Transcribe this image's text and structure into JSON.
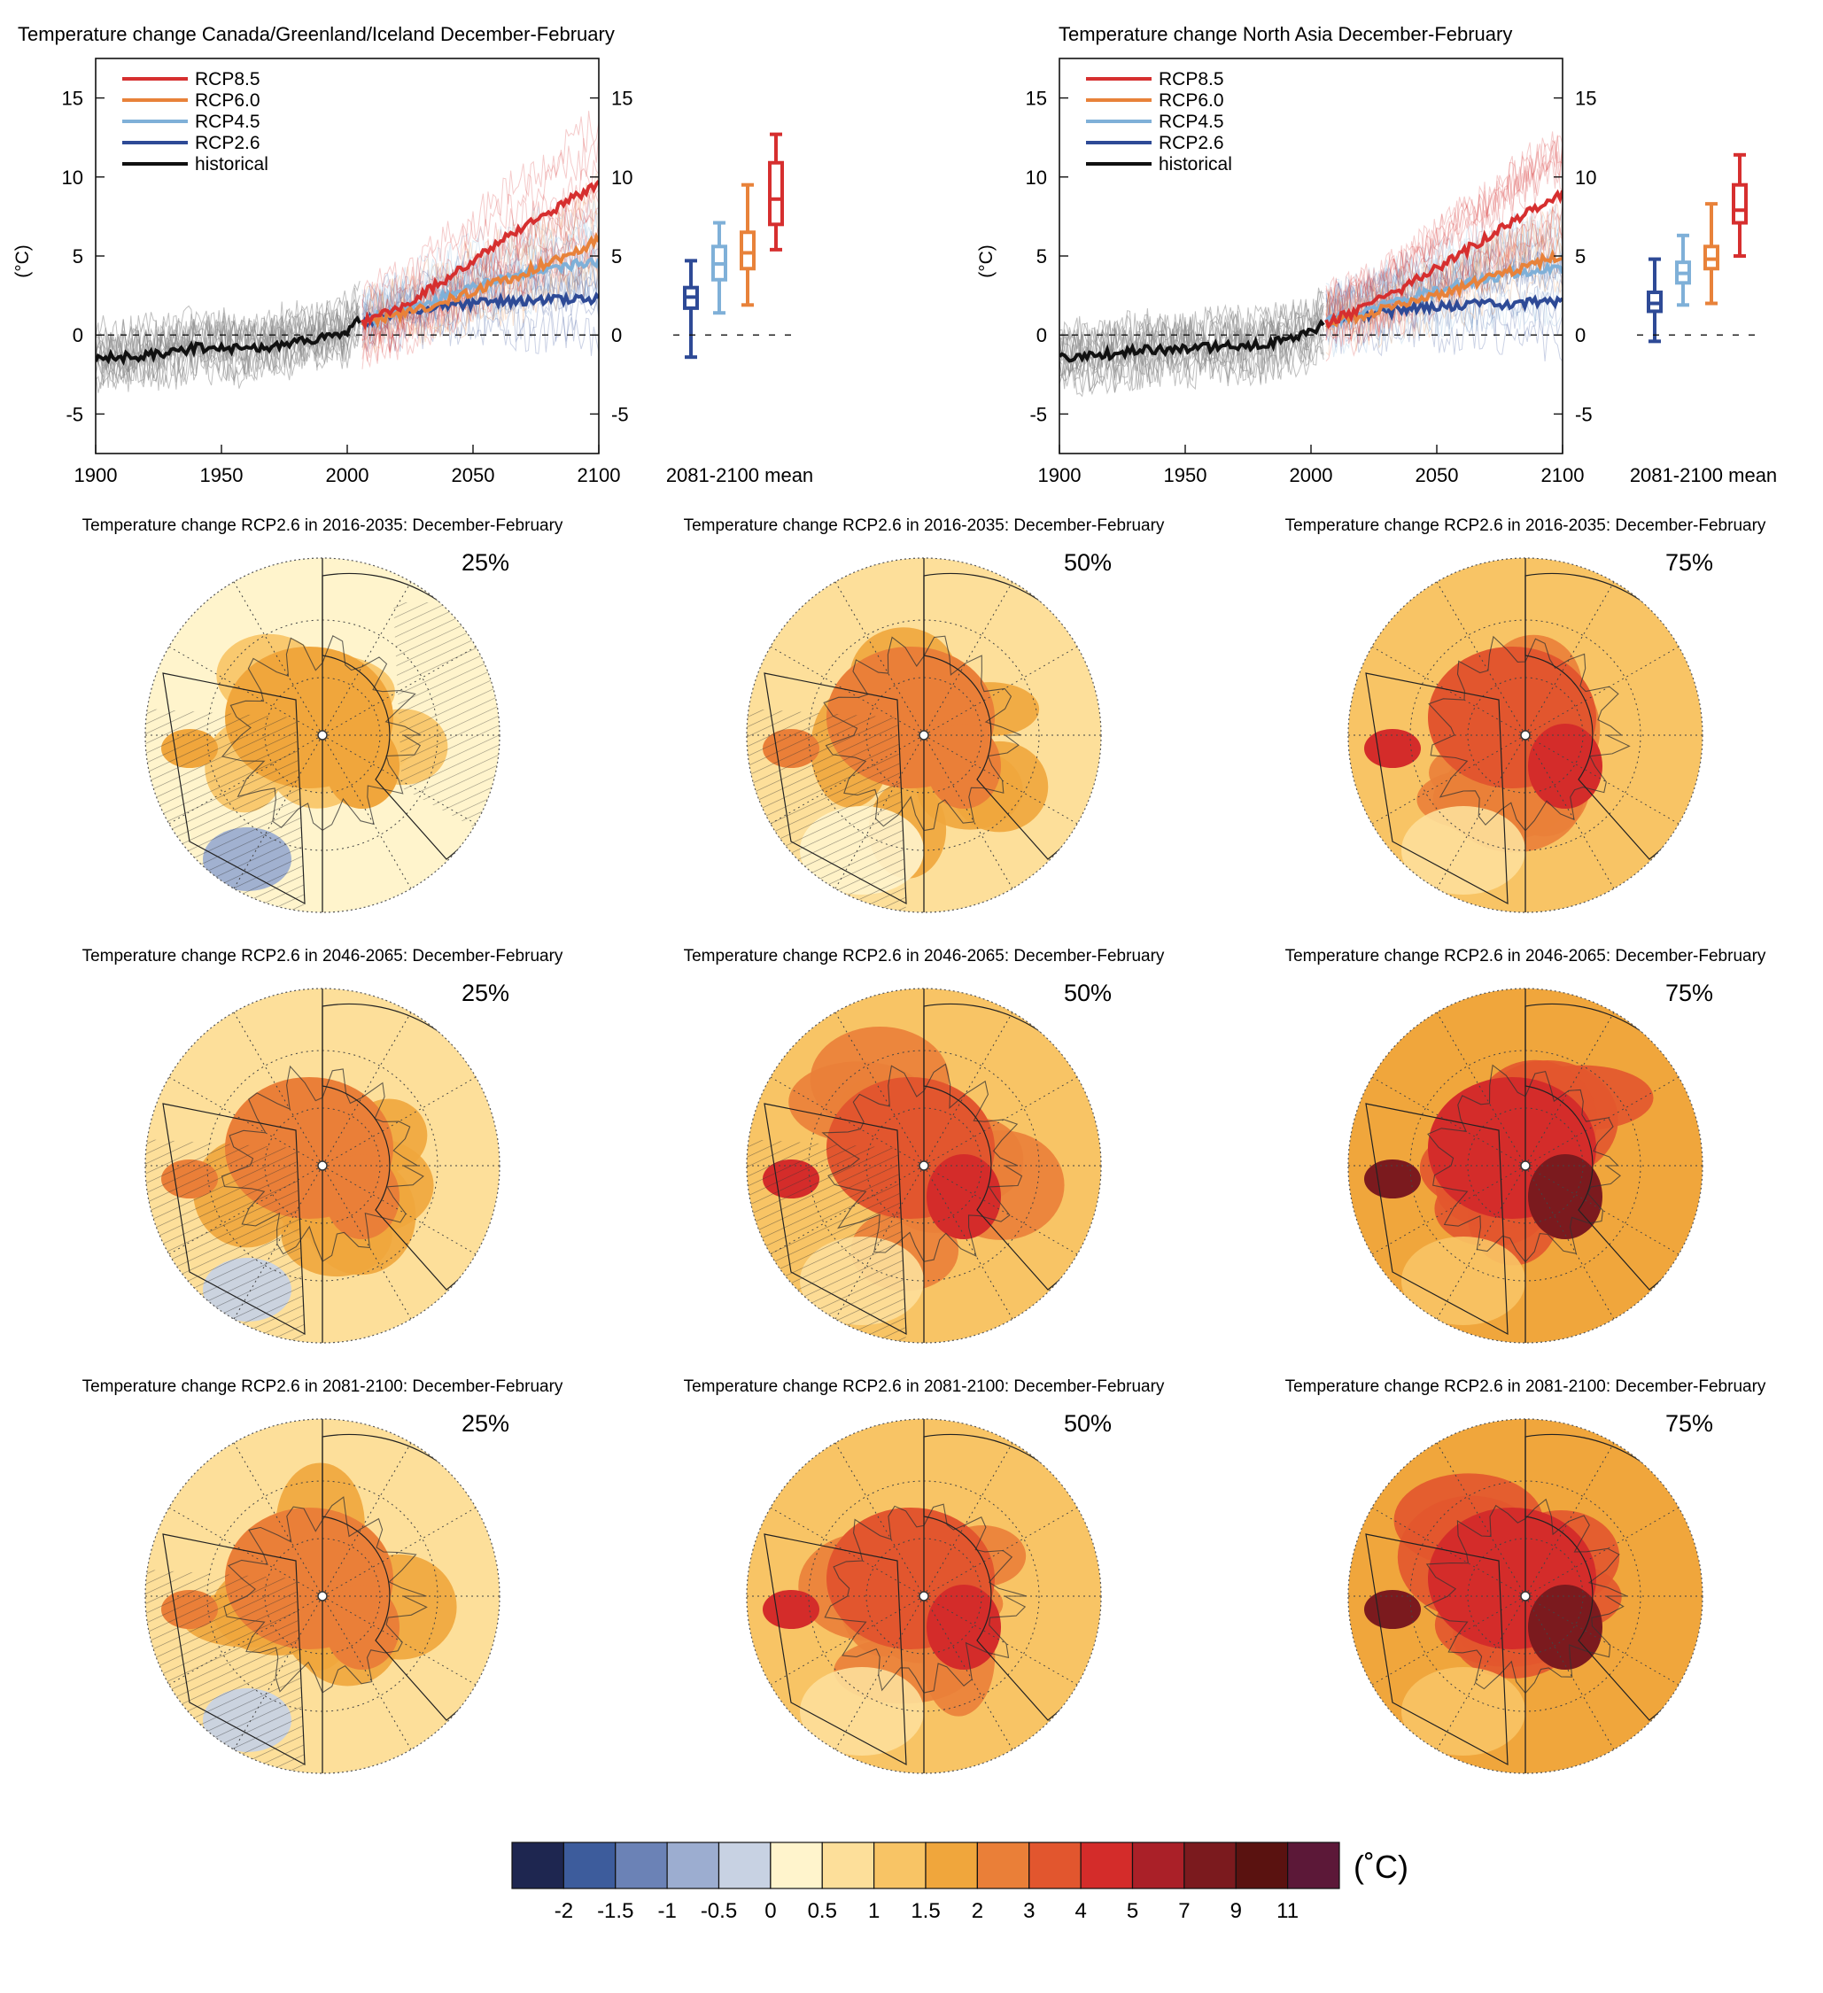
{
  "colors": {
    "RCP8.5": "#d62f2f",
    "RCP6.0": "#e8823a",
    "RCP4.5": "#7fb0d8",
    "RCP2.6": "#2e4a96",
    "historical": "#111111",
    "historical_spread": "#8a8a8a"
  },
  "timeseries_panels": [
    {
      "title": "Temperature change Canada/Greenland/Iceland December-February",
      "ylabel": "(°C)",
      "mean_label": "2081-2100 mean",
      "legend": [
        "RCP8.5",
        "RCP6.0",
        "RCP4.5",
        "RCP2.6",
        "historical"
      ]
    },
    {
      "title": "Temperature change North Asia December-February",
      "ylabel": "(°C)",
      "mean_label": "2081-2100 mean",
      "legend": [
        "RCP8.5",
        "RCP6.0",
        "RCP4.5",
        "RCP2.6",
        "historical"
      ]
    }
  ],
  "map_panels": [
    {
      "title": "Temperature change RCP2.6 in 2016-2035: December-February",
      "pct": "25%"
    },
    {
      "title": "Temperature change RCP2.6 in 2016-2035: December-February",
      "pct": "50%"
    },
    {
      "title": "Temperature change RCP2.6 in 2016-2035: December-February",
      "pct": "75%"
    },
    {
      "title": "Temperature change RCP2.6 in 2046-2065: December-February",
      "pct": "25%"
    },
    {
      "title": "Temperature change RCP2.6 in 2046-2065: December-February",
      "pct": "50%"
    },
    {
      "title": "Temperature change RCP2.6 in 2046-2065: December-February",
      "pct": "75%"
    },
    {
      "title": "Temperature change RCP2.6 in 2081-2100: December-February",
      "pct": "25%"
    },
    {
      "title": "Temperature change RCP2.6 in 2081-2100: December-February",
      "pct": "50%"
    },
    {
      "title": "Temperature change RCP2.6 in 2081-2100: December-February",
      "pct": "75%"
    }
  ],
  "colorbar": {
    "unit": "(˚C)",
    "tick_labels": [
      "-2",
      "-1.5",
      "-1",
      "-0.5",
      "0",
      "0.5",
      "1",
      "1.5",
      "2",
      "3",
      "4",
      "5",
      "7",
      "9",
      "11"
    ],
    "colors": [
      "#1e2650",
      "#3d5c9c",
      "#6b82b6",
      "#9cadd0",
      "#c8d2e3",
      "#fff4cc",
      "#fddf9a",
      "#f8c465",
      "#f0a63c",
      "#ea7f38",
      "#e2562e",
      "#d42c2a",
      "#aa2028",
      "#7b1a1e",
      "#5a1210",
      "#5c1838"
    ]
  },
  "chart_data": [
    {
      "type": "line",
      "title": "Temperature change Canada/Greenland/Iceland December-February",
      "xlabel": "",
      "ylabel": "(°C)",
      "xlim": [
        1900,
        2100
      ],
      "ylim": [
        -7.5,
        17.5
      ],
      "xticks": [
        1900,
        1950,
        2000,
        2050,
        2100
      ],
      "yticks": [
        -5,
        0,
        5,
        10,
        15
      ],
      "grid": false,
      "legend_position": "top-left",
      "series": [
        {
          "name": "historical",
          "x": [
            1900,
            1920,
            1940,
            1960,
            1980,
            2000,
            2005
          ],
          "y": [
            -1.5,
            -1.3,
            -0.8,
            -0.9,
            -0.5,
            0.2,
            0.9
          ]
        },
        {
          "name": "RCP2.6",
          "x": [
            2006,
            2020,
            2040,
            2060,
            2080,
            2100
          ],
          "y": [
            0.8,
            1.4,
            1.9,
            2.1,
            2.2,
            2.3
          ]
        },
        {
          "name": "RCP4.5",
          "x": [
            2006,
            2020,
            2040,
            2060,
            2080,
            2100
          ],
          "y": [
            0.8,
            1.5,
            2.5,
            3.5,
            4.3,
            4.6
          ]
        },
        {
          "name": "RCP6.0",
          "x": [
            2006,
            2020,
            2040,
            2060,
            2080,
            2100
          ],
          "y": [
            0.8,
            1.3,
            2.2,
            3.3,
            4.6,
            6.0
          ]
        },
        {
          "name": "RCP8.5",
          "x": [
            2006,
            2020,
            2040,
            2060,
            2080,
            2100
          ],
          "y": [
            0.8,
            1.7,
            3.6,
            5.8,
            7.8,
            9.6
          ]
        }
      ],
      "boxes_2081_2100_mean": [
        {
          "name": "RCP2.6",
          "min": -1.4,
          "q1": 1.7,
          "median": 2.4,
          "q3": 3.0,
          "max": 4.7
        },
        {
          "name": "RCP4.5",
          "min": 1.4,
          "q1": 3.5,
          "median": 4.5,
          "q3": 5.6,
          "max": 7.1
        },
        {
          "name": "RCP6.0",
          "min": 1.9,
          "q1": 4.2,
          "median": 5.2,
          "q3": 6.5,
          "max": 9.5
        },
        {
          "name": "RCP8.5",
          "min": 5.4,
          "q1": 7.0,
          "median": 8.6,
          "q3": 10.9,
          "max": 12.7
        }
      ]
    },
    {
      "type": "line",
      "title": "Temperature change North Asia December-February",
      "xlabel": "",
      "ylabel": "(°C)",
      "xlim": [
        1900,
        2100
      ],
      "ylim": [
        -7.5,
        17.5
      ],
      "xticks": [
        1900,
        1950,
        2000,
        2050,
        2100
      ],
      "yticks": [
        -5,
        0,
        5,
        10,
        15
      ],
      "grid": false,
      "legend_position": "top-left",
      "series": [
        {
          "name": "historical",
          "x": [
            1900,
            1920,
            1940,
            1960,
            1980,
            2000,
            2005
          ],
          "y": [
            -1.4,
            -1.2,
            -0.9,
            -0.8,
            -0.6,
            0.1,
            0.9
          ]
        },
        {
          "name": "RCP2.6",
          "x": [
            2006,
            2020,
            2040,
            2060,
            2080,
            2100
          ],
          "y": [
            0.8,
            1.2,
            1.7,
            1.9,
            2.0,
            2.1
          ]
        },
        {
          "name": "RCP4.5",
          "x": [
            2006,
            2020,
            2040,
            2060,
            2080,
            2100
          ],
          "y": [
            0.8,
            1.4,
            2.4,
            3.2,
            3.9,
            4.2
          ]
        },
        {
          "name": "RCP6.0",
          "x": [
            2006,
            2020,
            2040,
            2060,
            2080,
            2100
          ],
          "y": [
            0.8,
            1.2,
            2.1,
            3.0,
            4.1,
            5.1
          ]
        },
        {
          "name": "RCP8.5",
          "x": [
            2006,
            2020,
            2040,
            2060,
            2080,
            2100
          ],
          "y": [
            0.8,
            1.6,
            3.3,
            5.2,
            7.2,
            9.0
          ]
        }
      ],
      "boxes_2081_2100_mean": [
        {
          "name": "RCP2.6",
          "min": -0.4,
          "q1": 1.5,
          "median": 2.0,
          "q3": 2.7,
          "max": 4.8
        },
        {
          "name": "RCP4.5",
          "min": 1.9,
          "q1": 3.3,
          "median": 3.9,
          "q3": 4.6,
          "max": 6.3
        },
        {
          "name": "RCP6.0",
          "min": 2.0,
          "q1": 4.2,
          "median": 4.8,
          "q3": 5.6,
          "max": 8.3
        },
        {
          "name": "RCP8.5",
          "min": 5.0,
          "q1": 7.1,
          "median": 7.9,
          "q3": 9.5,
          "max": 11.4
        }
      ]
    },
    {
      "type": "heatmap",
      "title": "Temperature change RCP2.6 in 2016-2035: December-February",
      "percentile": "25%",
      "projection": "north-polar",
      "hatching": true,
      "values_range_C": [
        -0.5,
        2
      ]
    },
    {
      "type": "heatmap",
      "title": "Temperature change RCP2.6 in 2016-2035: December-February",
      "percentile": "50%",
      "projection": "north-polar",
      "hatching": true,
      "values_range_C": [
        0,
        3
      ]
    },
    {
      "type": "heatmap",
      "title": "Temperature change RCP2.6 in 2016-2035: December-February",
      "percentile": "75%",
      "projection": "north-polar",
      "hatching": false,
      "values_range_C": [
        1,
        5
      ]
    },
    {
      "type": "heatmap",
      "title": "Temperature change RCP2.6 in 2046-2065: December-February",
      "percentile": "25%",
      "projection": "north-polar",
      "hatching": true,
      "values_range_C": [
        -0.5,
        3
      ]
    },
    {
      "type": "heatmap",
      "title": "Temperature change RCP2.6 in 2046-2065: December-February",
      "percentile": "50%",
      "projection": "north-polar",
      "hatching": true,
      "values_range_C": [
        0.5,
        5
      ]
    },
    {
      "type": "heatmap",
      "title": "Temperature change RCP2.6 in 2046-2065: December-February",
      "percentile": "75%",
      "projection": "north-polar",
      "hatching": false,
      "values_range_C": [
        1,
        9
      ]
    },
    {
      "type": "heatmap",
      "title": "Temperature change RCP2.6 in 2081-2100: December-February",
      "percentile": "25%",
      "projection": "north-polar",
      "hatching": true,
      "values_range_C": [
        -0.5,
        3
      ]
    },
    {
      "type": "heatmap",
      "title": "Temperature change RCP2.6 in 2081-2100: December-February",
      "percentile": "50%",
      "projection": "north-polar",
      "hatching": false,
      "values_range_C": [
        0.5,
        5
      ]
    },
    {
      "type": "heatmap",
      "title": "Temperature change RCP2.6 in 2081-2100: December-February",
      "percentile": "75%",
      "projection": "north-polar",
      "hatching": false,
      "values_range_C": [
        1,
        9
      ]
    }
  ]
}
